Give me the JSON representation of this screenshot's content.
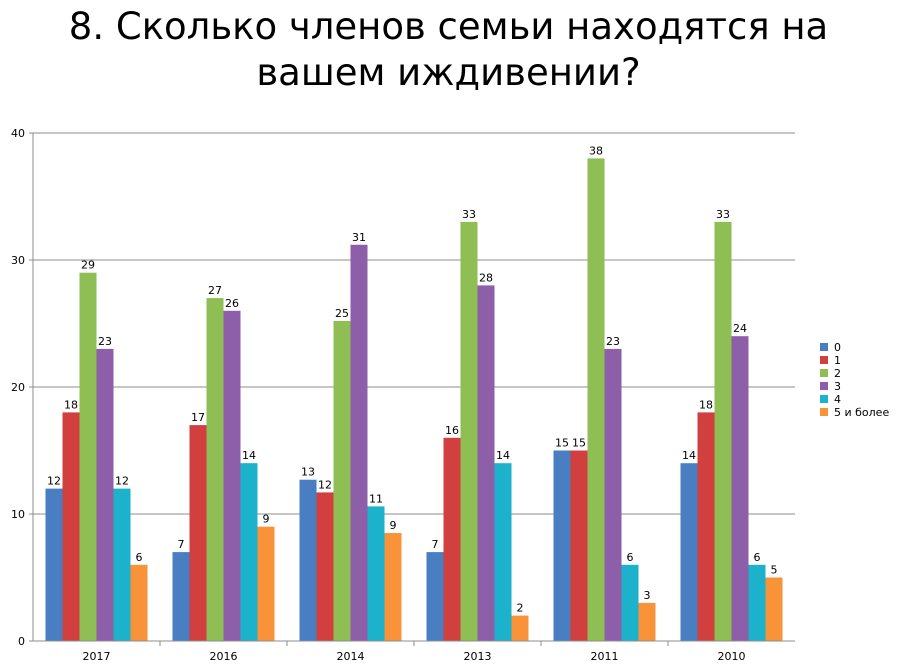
{
  "title_lines": [
    "8. Сколько членов семьи находятся на",
    "вашем иждивении?"
  ],
  "colors": [
    "#4a7ec3",
    "#d13f3f",
    "#8fbe55",
    "#8c5fa8",
    "#1cb2cc",
    "#f8933a"
  ],
  "chart_data": {
    "type": "bar",
    "title": "8. Сколько членов семьи находятся на вашем иждивении?",
    "categories": [
      "2017",
      "2016",
      "2014",
      "2013",
      "2011",
      "2010"
    ],
    "series": [
      {
        "name": "0",
        "values": [
          12,
          7,
          13,
          7,
          15,
          14
        ]
      },
      {
        "name": "1",
        "values": [
          18,
          17,
          12,
          16,
          15,
          18
        ]
      },
      {
        "name": "2",
        "values": [
          29,
          27,
          25,
          33,
          38,
          33
        ]
      },
      {
        "name": "3",
        "values": [
          23,
          26,
          31,
          28,
          23,
          24
        ]
      },
      {
        "name": "4",
        "values": [
          12,
          14,
          11,
          14,
          6,
          6
        ]
      },
      {
        "name": "5 и более",
        "values": [
          6,
          9,
          9,
          2,
          3,
          5
        ]
      }
    ],
    "plotted_values": [
      [
        12,
        7,
        12.7,
        7,
        15,
        14
      ],
      [
        18,
        17,
        11.7,
        16,
        15,
        18
      ],
      [
        29,
        27,
        25.2,
        33,
        38,
        33
      ],
      [
        23,
        26,
        31.2,
        28,
        23,
        24
      ],
      [
        12,
        14,
        10.6,
        14,
        6,
        6
      ],
      [
        6,
        9,
        8.5,
        2,
        3,
        5
      ]
    ],
    "ylim": [
      0,
      40
    ],
    "yticks": [
      0,
      10,
      20,
      30,
      40
    ],
    "grid": true,
    "legend_position": "right"
  }
}
